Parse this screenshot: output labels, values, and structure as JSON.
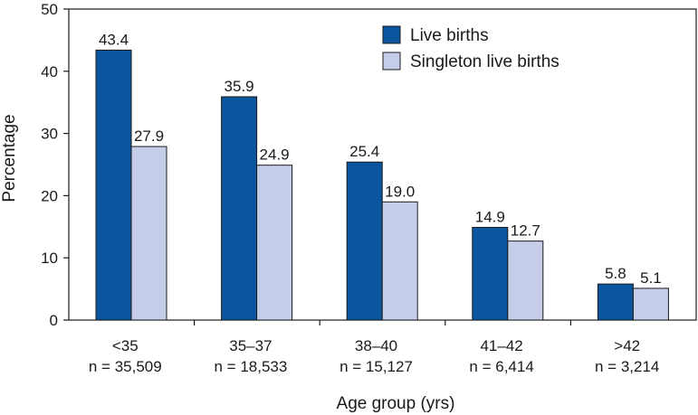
{
  "chart_data": {
    "type": "bar",
    "title": "",
    "xlabel": "Age group (yrs)",
    "ylabel": "Percentage",
    "ylim": [
      0,
      50
    ],
    "yticks": [
      0,
      10,
      20,
      30,
      40,
      50
    ],
    "grid": false,
    "legend_position": "top-right",
    "categories": [
      {
        "label": "<35",
        "n": "n = 35,509"
      },
      {
        "label": "35–37",
        "n": "n = 18,533"
      },
      {
        "label": "38–40",
        "n": "n = 15,127"
      },
      {
        "label": "41–42",
        "n": "n = 6,414"
      },
      {
        "label": ">42",
        "n": "n = 3,214"
      }
    ],
    "series": [
      {
        "name": "Live births",
        "color": "#0a559e",
        "values": [
          43.4,
          35.9,
          25.4,
          14.9,
          5.8
        ],
        "labels": [
          "43.4",
          "35.9",
          "25.4",
          "14.9",
          "5.8"
        ]
      },
      {
        "name": "Singleton live births",
        "color": "#c5cde9",
        "values": [
          27.9,
          24.9,
          19.0,
          12.7,
          5.1
        ],
        "labels": [
          "27.9",
          "24.9",
          "19.0",
          "12.7",
          "5.1"
        ]
      }
    ]
  }
}
